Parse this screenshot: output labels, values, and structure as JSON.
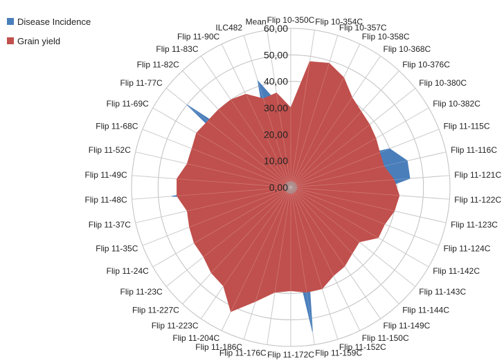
{
  "colors": {
    "disease": "#4a7ebb",
    "grain": "#c0504d",
    "grid": "#bfbfbf"
  },
  "chart_data": {
    "type": "radar",
    "rmin": 0,
    "rmax": 60,
    "ticks": [
      "0,00",
      "10,00",
      "20,00",
      "30,00",
      "40,00",
      "50,00",
      "60,00"
    ],
    "tick_values": [
      0,
      10,
      20,
      30,
      40,
      50,
      60
    ],
    "grid": true,
    "legend_position": "top-left",
    "categories": [
      "Flip 10-350C",
      "Flip 10-354C",
      "Flip 10-357C",
      "Flip 10-358C",
      "Flip 10-368C",
      "Flip 10-376C",
      "Flip 10-380C",
      "Flip 10-382C",
      "Flip 11-115C",
      "Flip 11-116C",
      "Flip 11-121C",
      "Flip 11-122C",
      "Flip 11-123C",
      "Flip 11-124C",
      "Flip 11-142C",
      "Flip 11-143C",
      "Flip 11-144C",
      "Flip 11-149C",
      "Flip 11-150C",
      "Flip 11-152C",
      "Flip 11-159C",
      "Flip 11-172C",
      "Flip 11-176C",
      "Flip 11-186C",
      "Flip 11-204C",
      "Flip 11-223C",
      "Flip 11-227C",
      "Flip 11-23C",
      "Flip 11-24C",
      "Flip 11-35C",
      "Flip 11-37C",
      "Flip 11-48C",
      "Flip 11-49C",
      "Flip 11-52C",
      "Flip 11-68C",
      "Flip 11-69C",
      "Flip 11-77C",
      "Flip 11-82C",
      "Flip 11-83C",
      "Flip 11-90C",
      "ILC482",
      "Mean"
    ],
    "series": [
      {
        "name": "Disease Incidence",
        "values": [
          0,
          20,
          20,
          20,
          20,
          20,
          20,
          20,
          40,
          45,
          45,
          30,
          20,
          20,
          20,
          20,
          20,
          20,
          20,
          20,
          55,
          20,
          20,
          20,
          20,
          20,
          20,
          20,
          20,
          20,
          20,
          45,
          20,
          20,
          20,
          20,
          50,
          20,
          20,
          20,
          42,
          32
        ]
      },
      {
        "name": "Grain yield",
        "values": [
          30,
          48,
          49,
          46,
          41,
          39,
          38,
          37,
          36,
          36,
          39,
          41,
          40,
          38,
          38,
          33,
          34,
          36,
          37,
          40,
          40,
          39,
          40,
          45,
          52,
          45,
          44,
          42,
          42,
          41,
          40,
          43,
          43,
          40,
          40,
          41,
          40,
          40,
          40,
          39,
          35,
          36
        ]
      }
    ]
  },
  "legend": {
    "items": [
      {
        "label": "Disease Incidence",
        "color": "#4a7ebb"
      },
      {
        "label": "Grain yield",
        "color": "#c0504d"
      }
    ]
  }
}
